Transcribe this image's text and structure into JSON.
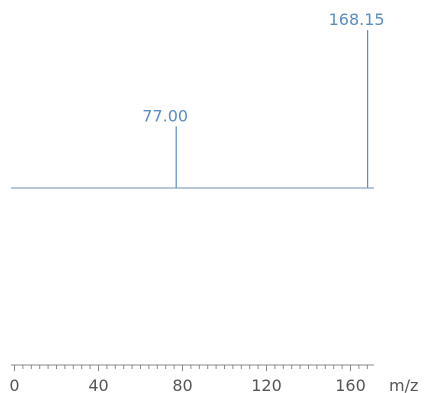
{
  "chart_data": {
    "type": "bar",
    "title": "",
    "xlabel": "m/z",
    "ylabel": "",
    "xlim": [
      0,
      168.15
    ],
    "x_ticks": [
      0,
      40,
      80,
      120,
      160
    ],
    "minor_tick_step": 4,
    "peaks": [
      {
        "mz": 77.0,
        "label": "77.00",
        "intensity": 0.39
      },
      {
        "mz": 168.15,
        "label": "168.15",
        "intensity": 1.0
      }
    ]
  },
  "colors": {
    "peak": "#5b8cbf",
    "baseline": "#6f8fb4",
    "axis": "#888888"
  }
}
